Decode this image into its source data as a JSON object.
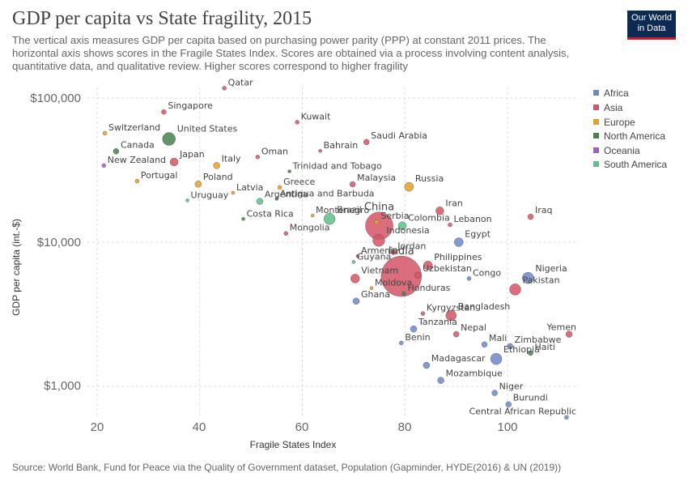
{
  "header": {
    "title": "GDP per capita vs State fragility, 2015",
    "subtitle": "The vertical axis measures GDP per capita based on purchasing power parity (PPP) at constant 2011 prices. The horizontal axis shows scores in the Fragile States Index. Scores are obtained via a process involving content analysis, quantitative data, and qualitative review. Higher scores correspond to higher fragility",
    "logo_line1": "Our World",
    "logo_line2": "in Data"
  },
  "footer": {
    "source": "Source: World Bank, Fund for Peace via the Quality of Government dataset, Population (Gapminder, HYDE(2016) & UN (2019))"
  },
  "colors": {
    "Africa": "#6d87c8",
    "Asia": "#d45566",
    "Europe": "#e8a024",
    "North America": "#46814c",
    "Oceania": "#a35cc6",
    "South America": "#5fc08b"
  },
  "chart_data": {
    "type": "scatter",
    "title": "GDP per capita vs State fragility, 2015",
    "xlabel": "Fragile States Index",
    "ylabel": "GDP per capita (int.-$)",
    "xlim": [
      18,
      115
    ],
    "ylim": [
      550,
      125000
    ],
    "yscale": "log",
    "x_ticks": [
      "20",
      "40",
      "60",
      "80",
      "100"
    ],
    "y_ticks": [
      "$1,000",
      "$10,000",
      "$100,000"
    ],
    "grid": "dashed",
    "legend": [
      "Africa",
      "Asia",
      "Europe",
      "North America",
      "Oceania",
      "South America"
    ],
    "legend_position": "right",
    "labeled_points": [
      {
        "name": "Qatar",
        "continent": "Asia",
        "x": 44.8,
        "y": 117000,
        "r": 2.5
      },
      {
        "name": "Singapore",
        "continent": "Asia",
        "x": 33.0,
        "y": 80000,
        "r": 3
      },
      {
        "name": "Kuwait",
        "continent": "Asia",
        "x": 59.0,
        "y": 68000,
        "r": 2.5
      },
      {
        "name": "Switzerland",
        "continent": "Europe",
        "x": 21.5,
        "y": 57000,
        "r": 2.5
      },
      {
        "name": "United States",
        "continent": "North America",
        "x": 34.0,
        "y": 52000,
        "r": 8
      },
      {
        "name": "Saudi Arabia",
        "continent": "Asia",
        "x": 72.5,
        "y": 49500,
        "r": 3.5
      },
      {
        "name": "Canada",
        "continent": "North America",
        "x": 23.7,
        "y": 42700,
        "r": 3.5
      },
      {
        "name": "Bahrain",
        "continent": "Asia",
        "x": 63.5,
        "y": 43000,
        "r": 2
      },
      {
        "name": "Oman",
        "continent": "Asia",
        "x": 51.3,
        "y": 39000,
        "r": 2.5
      },
      {
        "name": "Japan",
        "continent": "Asia",
        "x": 35.0,
        "y": 36000,
        "r": 5
      },
      {
        "name": "New Zealand",
        "continent": "Oceania",
        "x": 21.3,
        "y": 34000,
        "r": 2.5
      },
      {
        "name": "Italy",
        "continent": "Europe",
        "x": 43.3,
        "y": 34000,
        "r": 4
      },
      {
        "name": "Trinidad and Tobago",
        "continent": "North America",
        "x": 57.5,
        "y": 31000,
        "r": 2
      },
      {
        "name": "Portugal",
        "continent": "Europe",
        "x": 27.8,
        "y": 26500,
        "r": 2.5
      },
      {
        "name": "Poland",
        "continent": "Europe",
        "x": 39.7,
        "y": 25300,
        "r": 4
      },
      {
        "name": "Russia",
        "continent": "Europe",
        "x": 80.8,
        "y": 24200,
        "r": 5.5
      },
      {
        "name": "Malaysia",
        "continent": "Asia",
        "x": 69.8,
        "y": 25200,
        "r": 3.5
      },
      {
        "name": "Greece",
        "continent": "Europe",
        "x": 55.6,
        "y": 24000,
        "r": 2.5
      },
      {
        "name": "Latvia",
        "continent": "Europe",
        "x": 46.5,
        "y": 22000,
        "r": 2
      },
      {
        "name": "Argentina",
        "continent": "South America",
        "x": 51.7,
        "y": 19200,
        "r": 4
      },
      {
        "name": "Antigua and Barbuda",
        "continent": "North America",
        "x": 55.0,
        "y": 20000,
        "r": 2
      },
      {
        "name": "Uruguay",
        "continent": "South America",
        "x": 37.6,
        "y": 19500,
        "r": 2
      },
      {
        "name": "China",
        "continent": "Asia",
        "x": 75.0,
        "y": 13000,
        "r": 17
      },
      {
        "name": "Iran",
        "continent": "Asia",
        "x": 86.8,
        "y": 16500,
        "r": 5
      },
      {
        "name": "Montenegro",
        "continent": "Europe",
        "x": 62.0,
        "y": 15300,
        "r": 2
      },
      {
        "name": "Brazil",
        "continent": "South America",
        "x": 65.3,
        "y": 14500,
        "r": 7
      },
      {
        "name": "Costa Rica",
        "continent": "North America",
        "x": 48.5,
        "y": 14500,
        "r": 2
      },
      {
        "name": "Iraq",
        "continent": "Asia",
        "x": 104.5,
        "y": 15000,
        "r": 3.5
      },
      {
        "name": "Serbia",
        "continent": "Europe",
        "x": 74.5,
        "y": 13800,
        "r": 3
      },
      {
        "name": "Colombia",
        "continent": "South America",
        "x": 79.5,
        "y": 13000,
        "r": 5
      },
      {
        "name": "Lebanon",
        "continent": "Asia",
        "x": 88.8,
        "y": 13200,
        "r": 2.5
      },
      {
        "name": "Mongolia",
        "continent": "Asia",
        "x": 56.8,
        "y": 11500,
        "r": 2.5
      },
      {
        "name": "Indonesia",
        "continent": "Asia",
        "x": 74.9,
        "y": 10300,
        "r": 7.5
      },
      {
        "name": "Egypt",
        "continent": "Africa",
        "x": 90.5,
        "y": 10000,
        "r": 5.5
      },
      {
        "name": "Jordan",
        "continent": "Asia",
        "x": 77.8,
        "y": 8500,
        "r": 3
      },
      {
        "name": "Armenia",
        "continent": "Asia",
        "x": 70.8,
        "y": 8000,
        "r": 2
      },
      {
        "name": "Guyana",
        "continent": "South America",
        "x": 70.0,
        "y": 7300,
        "r": 2
      },
      {
        "name": "India",
        "continent": "Asia",
        "x": 79.3,
        "y": 5800,
        "r": 25
      },
      {
        "name": "Philippines",
        "continent": "Asia",
        "x": 84.5,
        "y": 6900,
        "r": 5.5
      },
      {
        "name": "Vietnam",
        "continent": "Asia",
        "x": 70.3,
        "y": 5600,
        "r": 5.5
      },
      {
        "name": "Uzbekistan",
        "continent": "Asia",
        "x": 82.5,
        "y": 5900,
        "r": 4
      },
      {
        "name": "Congo",
        "continent": "Africa",
        "x": 92.5,
        "y": 5600,
        "r": 2.5
      },
      {
        "name": "Nigeria",
        "continent": "Africa",
        "x": 104.0,
        "y": 5650,
        "r": 7
      },
      {
        "name": "Pakistan",
        "continent": "Asia",
        "x": 101.5,
        "y": 4700,
        "r": 7
      },
      {
        "name": "Moldova",
        "continent": "Europe",
        "x": 73.5,
        "y": 4800,
        "r": 2
      },
      {
        "name": "Honduras",
        "continent": "North America",
        "x": 79.8,
        "y": 4400,
        "r": 2.5
      },
      {
        "name": "Ghana",
        "continent": "Africa",
        "x": 70.5,
        "y": 3900,
        "r": 4
      },
      {
        "name": "Kyrgyzstan",
        "continent": "Asia",
        "x": 83.5,
        "y": 3200,
        "r": 2.5
      },
      {
        "name": "Bangladesh",
        "continent": "Asia",
        "x": 89.0,
        "y": 3100,
        "r": 6.5
      },
      {
        "name": "Tanzania",
        "continent": "Africa",
        "x": 81.7,
        "y": 2500,
        "r": 4
      },
      {
        "name": "Nepal",
        "continent": "Asia",
        "x": 90.0,
        "y": 2300,
        "r": 3.5
      },
      {
        "name": "Benin",
        "continent": "Africa",
        "x": 79.3,
        "y": 2000,
        "r": 2.5
      },
      {
        "name": "Mali",
        "continent": "Africa",
        "x": 95.5,
        "y": 1950,
        "r": 3.5
      },
      {
        "name": "Yemen",
        "continent": "Asia",
        "x": 112.0,
        "y": 2300,
        "r": 4
      },
      {
        "name": "Zimbabwe",
        "continent": "Africa",
        "x": 100.5,
        "y": 1900,
        "r": 3.5
      },
      {
        "name": "Haiti",
        "continent": "North America",
        "x": 104.5,
        "y": 1700,
        "r": 3
      },
      {
        "name": "Ethiopia",
        "continent": "Africa",
        "x": 97.8,
        "y": 1550,
        "r": 7
      },
      {
        "name": "Madagascar",
        "continent": "Africa",
        "x": 84.2,
        "y": 1400,
        "r": 4
      },
      {
        "name": "Mozambique",
        "continent": "Africa",
        "x": 87.0,
        "y": 1100,
        "r": 4
      },
      {
        "name": "Niger",
        "continent": "Africa",
        "x": 97.5,
        "y": 900,
        "r": 3.5
      },
      {
        "name": "Burundi",
        "continent": "Africa",
        "x": 100.2,
        "y": 750,
        "r": 3.5
      },
      {
        "name": "Central African Republic",
        "continent": "Africa",
        "x": 111.5,
        "y": 610,
        "r": 2.5
      }
    ]
  }
}
